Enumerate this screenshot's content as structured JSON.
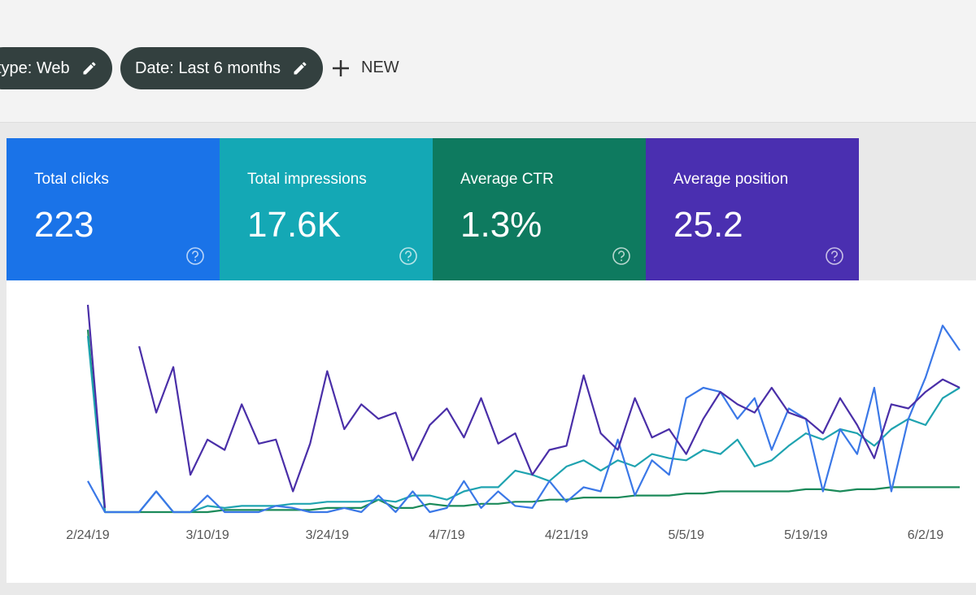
{
  "filters": [
    {
      "label": "type: Web"
    },
    {
      "label": "Date: Last 6 months"
    }
  ],
  "new_button": "NEW",
  "metrics": [
    {
      "label": "Total clicks",
      "value": "223",
      "color": "#1a73e8"
    },
    {
      "label": "Total impressions",
      "value": "17.6K",
      "color": "#14a8b5"
    },
    {
      "label": "Average CTR",
      "value": "1.3%",
      "color": "#0e7a5f"
    },
    {
      "label": "Average position",
      "value": "25.2",
      "color": "#4a2fb0"
    }
  ],
  "chart": {
    "type": "line",
    "ylim": [
      0,
      100
    ],
    "categories": [
      "2/24/19",
      null,
      null,
      null,
      null,
      null,
      null,
      "3/10/19",
      null,
      null,
      null,
      null,
      null,
      null,
      "3/24/19",
      null,
      null,
      null,
      null,
      null,
      null,
      "4/7/19",
      null,
      null,
      null,
      null,
      null,
      null,
      "4/21/19",
      null,
      null,
      null,
      null,
      null,
      null,
      "5/5/19",
      null,
      null,
      null,
      null,
      null,
      null,
      "5/19/19",
      null,
      null,
      null,
      null,
      null,
      null,
      "6/2/19",
      null,
      null
    ],
    "series": [
      {
        "color": "#4a2fa8",
        "values": [
          100,
          2,
          null,
          80,
          48,
          70,
          18,
          35,
          30,
          52,
          33,
          35,
          10,
          33,
          68,
          40,
          52,
          45,
          48,
          25,
          42,
          50,
          36,
          55,
          33,
          38,
          18,
          30,
          32,
          66,
          38,
          30,
          55,
          36,
          40,
          28,
          45,
          58,
          52,
          48,
          60,
          48,
          45,
          38,
          55,
          42,
          26,
          52,
          50,
          58,
          64,
          60
        ]
      },
      {
        "color": "#3b78e7",
        "values": [
          15,
          0,
          0,
          0,
          10,
          0,
          0,
          8,
          0,
          0,
          0,
          3,
          2,
          0,
          0,
          2,
          0,
          8,
          0,
          10,
          0,
          2,
          15,
          2,
          10,
          3,
          2,
          15,
          5,
          12,
          10,
          35,
          8,
          25,
          18,
          55,
          60,
          58,
          45,
          55,
          30,
          50,
          45,
          10,
          40,
          28,
          60,
          10,
          45,
          65,
          90,
          78
        ]
      },
      {
        "color": "#1fa3b0",
        "values": [
          85,
          0,
          0,
          0,
          10,
          0,
          0,
          3,
          2,
          3,
          3,
          3,
          4,
          4,
          5,
          5,
          5,
          6,
          5,
          8,
          8,
          6,
          10,
          12,
          12,
          20,
          18,
          15,
          22,
          25,
          20,
          25,
          22,
          28,
          26,
          25,
          30,
          28,
          35,
          22,
          25,
          32,
          38,
          35,
          40,
          38,
          32,
          40,
          45,
          42,
          55,
          60
        ]
      },
      {
        "color": "#1b8a5a",
        "values": [
          88,
          0,
          0,
          0,
          0,
          0,
          0,
          0,
          1,
          1,
          1,
          1,
          1,
          1,
          2,
          2,
          2,
          6,
          2,
          2,
          4,
          3,
          3,
          4,
          4,
          5,
          5,
          6,
          6,
          7,
          7,
          7,
          8,
          8,
          8,
          9,
          9,
          10,
          10,
          10,
          10,
          10,
          11,
          11,
          10,
          11,
          11,
          12,
          12,
          12,
          12,
          12
        ]
      }
    ]
  }
}
